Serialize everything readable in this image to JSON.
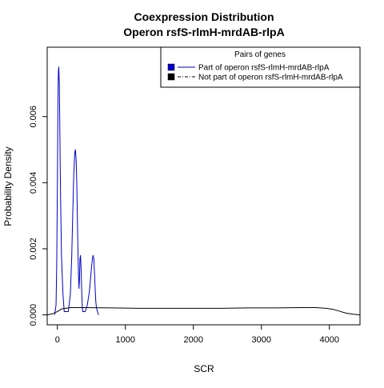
{
  "chart_data": {
    "type": "line",
    "title": "Coexpression Distribution",
    "subtitle": "Operon rsfS-rlmH-mrdAB-rlpA",
    "xlabel": "SCR",
    "ylabel": "Probability Density",
    "xlim": [
      -150,
      4450
    ],
    "ylim": [
      -0.0003,
      0.0081
    ],
    "xticks": [
      0,
      1000,
      2000,
      3000,
      4000
    ],
    "xtick_labels": [
      "0",
      "1000",
      "2000",
      "3000",
      "4000"
    ],
    "yticks": [
      0,
      0.002,
      0.004,
      0.006
    ],
    "ytick_labels": [
      "0.000",
      "0.002",
      "0.004",
      "0.006"
    ],
    "grid": false,
    "legend": {
      "title": "Pairs of genes",
      "position": "top-right"
    },
    "series": [
      {
        "name": "Part of operon rsfS-rlmH-mrdAB-rlpA",
        "color": "#0000cc",
        "style": "solid",
        "x": [
          -40,
          -20,
          -10,
          0,
          5,
          10,
          15,
          20,
          28,
          35,
          45,
          60,
          80,
          100,
          130,
          160,
          190,
          210,
          225,
          240,
          255,
          265,
          275,
          285,
          300,
          310,
          318,
          325,
          332,
          340,
          350,
          358,
          365,
          372,
          380,
          390,
          410,
          440,
          470,
          500,
          515,
          525,
          535,
          545,
          555,
          565,
          575,
          590,
          605
        ],
        "y": [
          0.0,
          0.0003,
          0.0015,
          0.004,
          0.0055,
          0.0068,
          0.0074,
          0.0075,
          0.007,
          0.0058,
          0.0038,
          0.0018,
          0.0007,
          0.0001,
          0.0001,
          0.0001,
          0.0006,
          0.0017,
          0.003,
          0.0042,
          0.0049,
          0.005,
          0.0047,
          0.004,
          0.0022,
          0.0012,
          0.0008,
          0.0011,
          0.0017,
          0.0018,
          0.0013,
          0.0007,
          0.0003,
          0.0001,
          0.0001,
          0.0001,
          0.0001,
          0.0003,
          0.0007,
          0.0014,
          0.0017,
          0.0018,
          0.0017,
          0.0013,
          0.0008,
          0.0004,
          0.0002,
          0.0001,
          0.0
        ]
      },
      {
        "name": "Not part of operon rsfS-rlmH-mrdAB-rlpA",
        "color": "#000000",
        "style": "dashdot",
        "x": [
          -150,
          -60,
          0,
          60,
          120,
          200,
          400,
          800,
          1200,
          1600,
          2000,
          2400,
          2800,
          3200,
          3600,
          3800,
          3950,
          4050,
          4150,
          4250,
          4350,
          4450
        ],
        "y": [
          0.0,
          4e-05,
          0.0001,
          0.00018,
          0.0002,
          0.00022,
          0.00022,
          0.00021,
          0.0002,
          0.0002,
          0.0002,
          0.0002,
          0.00021,
          0.00021,
          0.00022,
          0.00022,
          0.0002,
          0.00017,
          0.00011,
          5e-05,
          2e-05,
          0.0
        ]
      }
    ]
  }
}
